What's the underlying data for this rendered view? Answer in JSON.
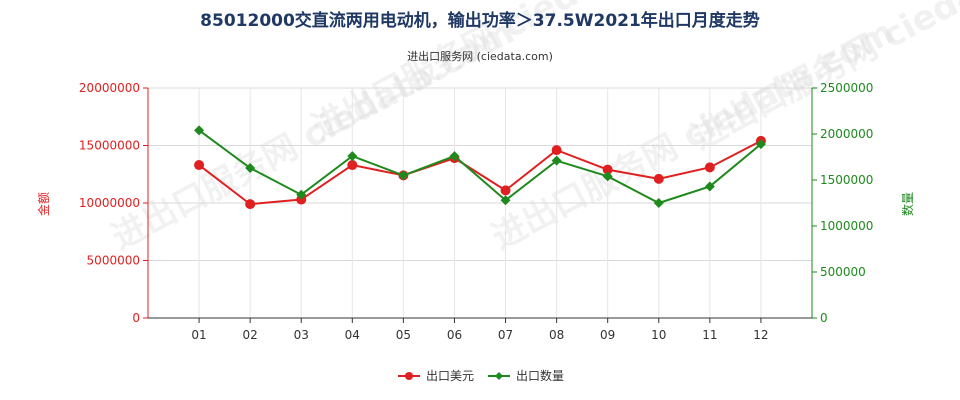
{
  "chart_data": {
    "type": "line",
    "title": "85012000交直流两用电动机，输出功率＞37.5W2021年出口月度走势",
    "subtitle": "进出口服务网 (ciedata.com)",
    "watermark": "进出口服务网 ciedata.com",
    "categories": [
      "01",
      "02",
      "03",
      "04",
      "05",
      "06",
      "07",
      "08",
      "09",
      "10",
      "11",
      "12"
    ],
    "left_axis": {
      "label": "金额",
      "ylim": [
        0,
        20000000
      ],
      "ticks": [
        0,
        5000000,
        10000000,
        15000000,
        20000000
      ],
      "tick_labels": [
        "0",
        "5000000",
        "10000000",
        "15000000",
        "20000000"
      ],
      "color": "#e02020"
    },
    "right_axis": {
      "label": "数量",
      "ylim": [
        0,
        2500000
      ],
      "ticks": [
        0,
        500000,
        1000000,
        1500000,
        2000000,
        2500000
      ],
      "tick_labels": [
        "0",
        "500000",
        "1000000",
        "1500000",
        "2000000",
        "2500000"
      ],
      "color": "#1e8a1e"
    },
    "series": [
      {
        "name": "出口美元",
        "axis": "left",
        "color": "#e02020",
        "marker": "circle",
        "values": [
          13300000,
          9900000,
          10300000,
          13300000,
          12400000,
          13900000,
          11100000,
          14600000,
          12900000,
          12100000,
          13100000,
          15400000
        ]
      },
      {
        "name": "出口数量",
        "axis": "right",
        "color": "#1e8a1e",
        "marker": "diamond",
        "values": [
          2040000,
          1630000,
          1340000,
          1760000,
          1550000,
          1760000,
          1280000,
          1710000,
          1540000,
          1250000,
          1430000,
          1890000
        ]
      }
    ],
    "grid": true,
    "legend": "bottom-center"
  }
}
